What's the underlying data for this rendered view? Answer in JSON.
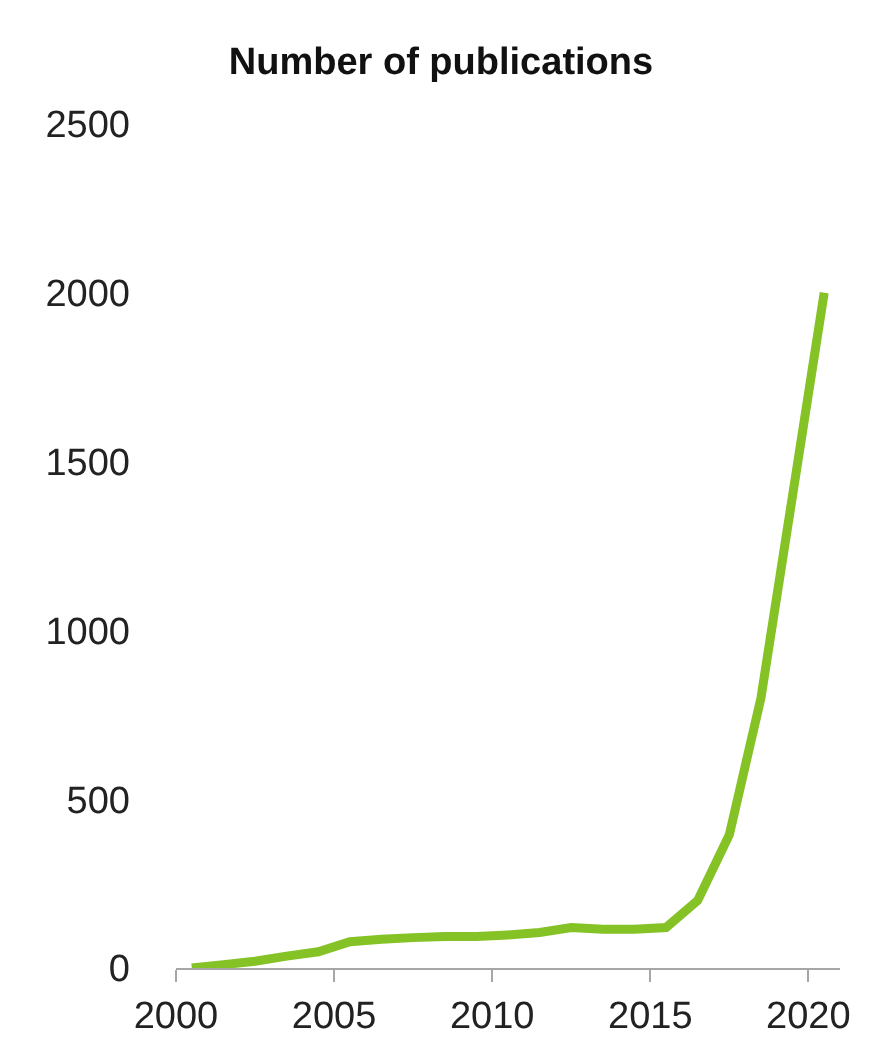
{
  "chart_data": {
    "type": "line",
    "title": "Number of publications",
    "x": [
      2000.5,
      2001.5,
      2002.5,
      2003.5,
      2004.5,
      2005.5,
      2006.5,
      2007.5,
      2008.5,
      2009.5,
      2010.5,
      2011.5,
      2012.5,
      2013.5,
      2014.5,
      2015.5,
      2016.5,
      2017.5,
      2018.5,
      2019.5,
      2020.5
    ],
    "series": [
      {
        "color": "#84c225",
        "values": [
          0,
          10,
          20,
          35,
          48,
          78,
          85,
          90,
          93,
          93,
          98,
          105,
          120,
          115,
          115,
          120,
          200,
          395,
          800,
          1400,
          2000
        ]
      }
    ],
    "xlim": [
      2000,
      2021
    ],
    "xticks": [
      2000,
      2005,
      2010,
      2015,
      2020
    ],
    "ylim": [
      0,
      2500
    ],
    "yticks": [
      0,
      500,
      1000,
      1500,
      2000,
      2500
    ],
    "marker": "none",
    "line_style": "solid"
  }
}
